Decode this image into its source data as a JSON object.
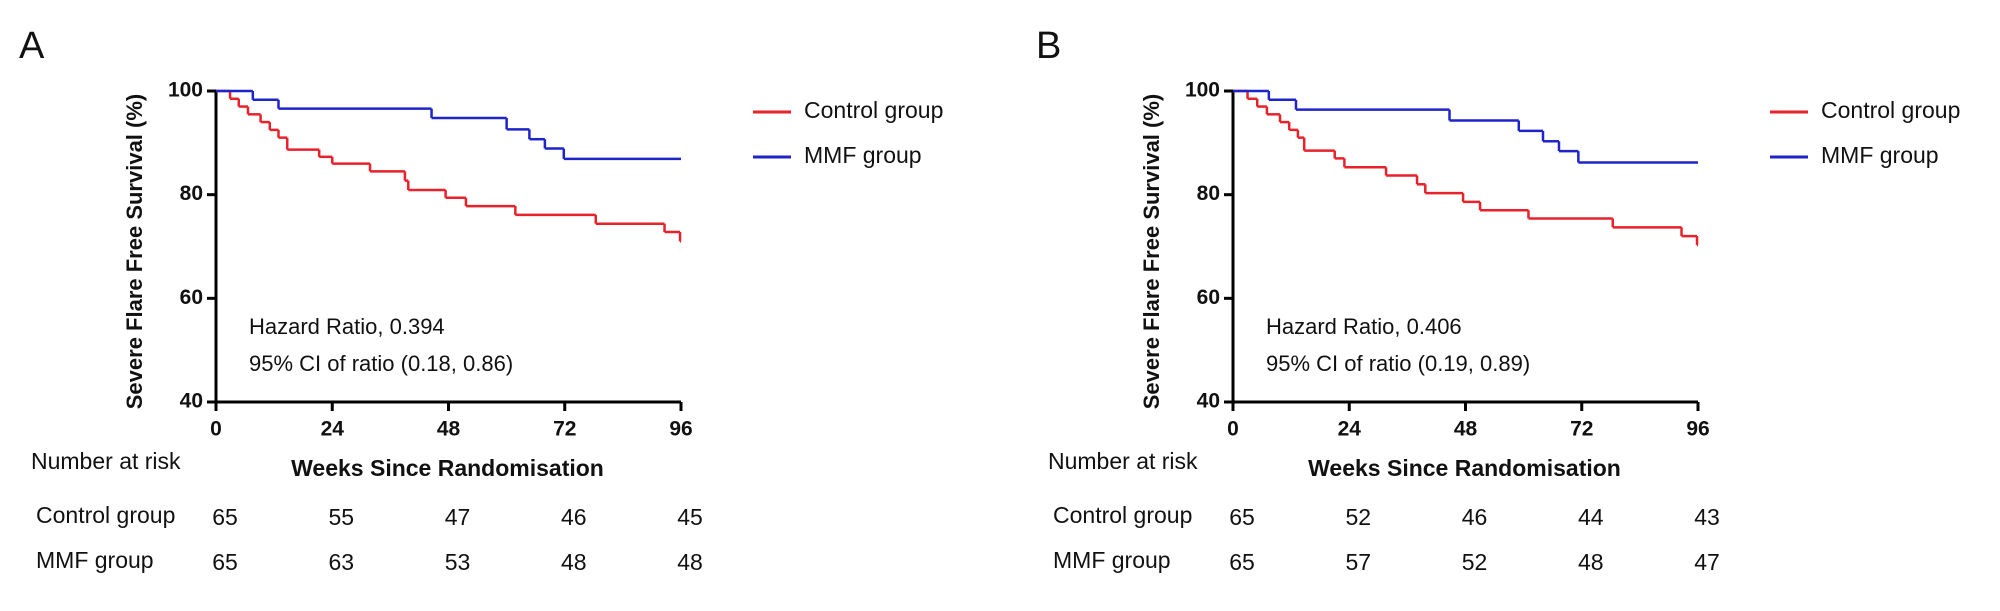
{
  "chart_data": [
    {
      "type": "step",
      "panel": "A",
      "y_label": "Severe Flare Free Survival (%)",
      "x_label": "Weeks Since Randomisation",
      "xlim": [
        0,
        96
      ],
      "ylim": [
        40,
        100
      ],
      "xticks": [
        0,
        24,
        48,
        72,
        96
      ],
      "yticks": [
        40,
        60,
        80,
        100
      ],
      "annotations": [
        "Hazard Ratio, 0.394",
        "95% CI of ratio (0.18, 0.86)"
      ],
      "series": [
        {
          "name": "Control group",
          "color": "#e8212a",
          "x": [
            0,
            2.9,
            4.7,
            6.6,
            9.2,
            11.1,
            12.9,
            14.7,
            21.3,
            24,
            31.8,
            39,
            39.7,
            47.4,
            51.6,
            61.8,
            78.4,
            92.6,
            95.8,
            96
          ],
          "values": [
            100,
            98.5,
            97,
            95.5,
            94,
            92.5,
            91,
            88.7,
            87.3,
            86,
            84.5,
            82.7,
            80.9,
            79.4,
            77.8,
            76.1,
            74.4,
            72.8,
            71,
            71
          ]
        },
        {
          "name": "MMF group",
          "color": "#1f24c9",
          "x": [
            0,
            7.6,
            12.9,
            44.5,
            60,
            64.7,
            67.9,
            71.8,
            96
          ],
          "values": [
            100,
            98.3,
            96.6,
            94.8,
            92.6,
            90.7,
            88.9,
            86.9,
            86.9
          ]
        }
      ],
      "risk_table": {
        "title": "Number at risk",
        "rows": [
          {
            "name": "Control group",
            "values": [
              65,
              55,
              47,
              46,
              45
            ]
          },
          {
            "name": "MMF group",
            "values": [
              65,
              63,
              53,
              48,
              48
            ]
          }
        ]
      }
    },
    {
      "type": "step",
      "panel": "B",
      "y_label": "Severe Flare Free Survival (%)",
      "x_label": "Weeks Since Randomisation",
      "xlim": [
        0,
        96
      ],
      "ylim": [
        40,
        100
      ],
      "xticks": [
        0,
        24,
        48,
        72,
        96
      ],
      "yticks": [
        40,
        60,
        80,
        100
      ],
      "annotations": [
        "Hazard Ratio, 0.406",
        "95% CI of ratio (0.19, 0.89)"
      ],
      "series": [
        {
          "name": "Control group",
          "color": "#e8212a",
          "x": [
            0,
            3,
            5,
            7,
            9.7,
            11.6,
            13.4,
            14.7,
            21,
            23,
            31.6,
            38,
            39.7,
            47.5,
            51,
            61,
            78.4,
            92.6,
            95.8,
            96
          ],
          "values": [
            100,
            98.5,
            97,
            95.5,
            94,
            92.5,
            91,
            88.5,
            87,
            85.3,
            83.7,
            82,
            80.3,
            78.6,
            77,
            75.4,
            73.7,
            72,
            70.3,
            70.3
          ]
        },
        {
          "name": "MMF group",
          "color": "#1f24c9",
          "x": [
            0,
            7.4,
            13,
            44.7,
            59,
            64,
            67.3,
            71.3,
            96
          ],
          "values": [
            100,
            98.3,
            96.4,
            94.3,
            92.3,
            90.3,
            88.4,
            86.2,
            86.2
          ]
        }
      ],
      "risk_table": {
        "title": "Number at risk",
        "rows": [
          {
            "name": "Control group",
            "values": [
              65,
              52,
              46,
              44,
              43
            ]
          },
          {
            "name": "MMF group",
            "values": [
              65,
              57,
              52,
              48,
              47
            ]
          }
        ]
      }
    }
  ]
}
